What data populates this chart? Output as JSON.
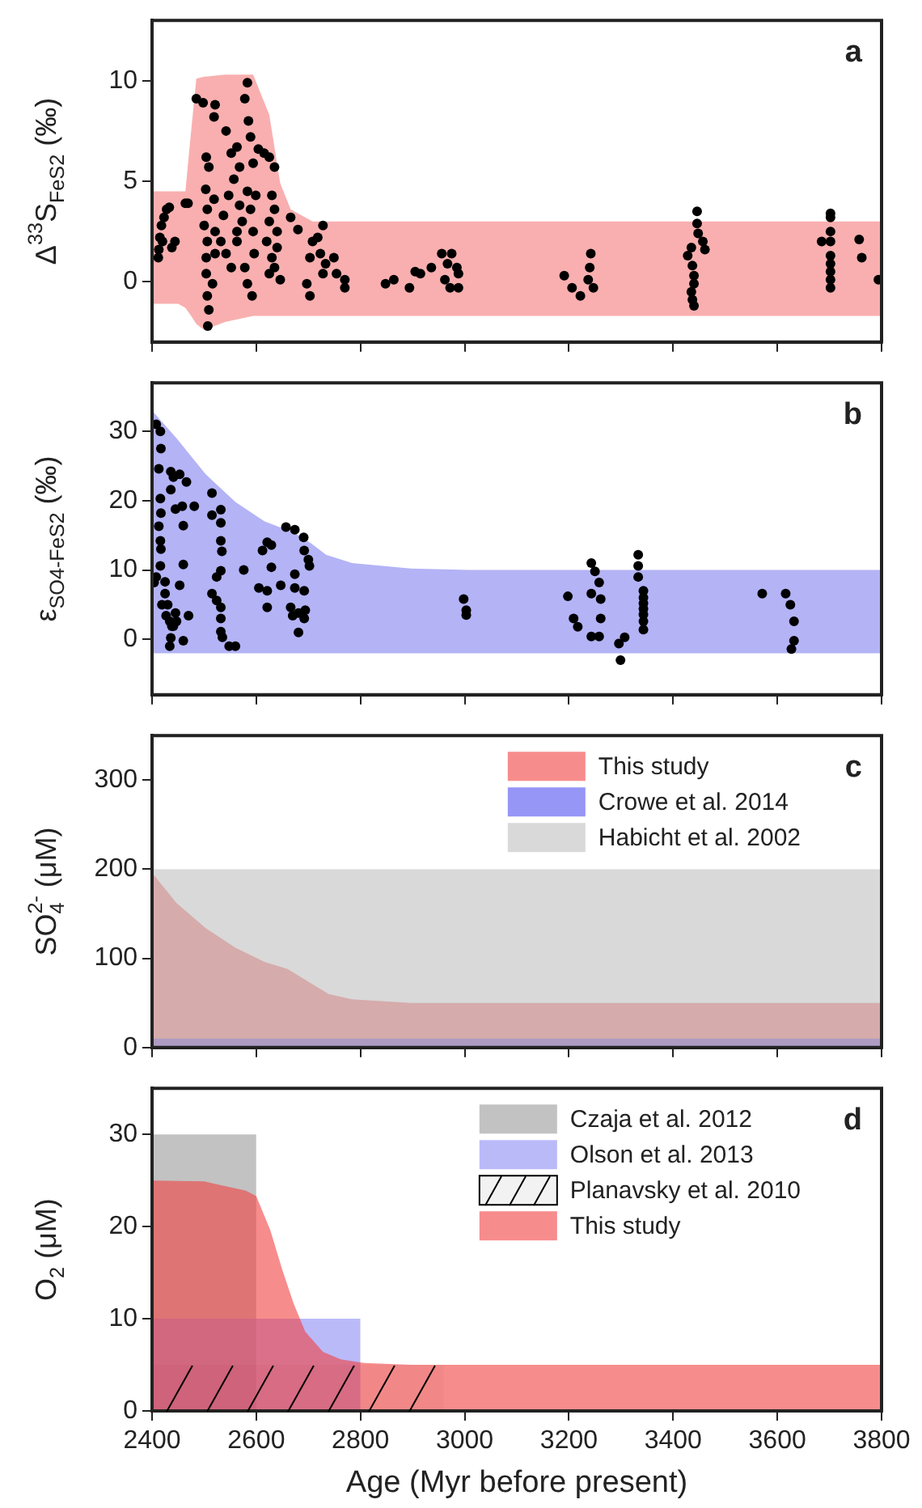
{
  "chart_data": [
    {
      "type": "scatter",
      "ylabel": "Δ$^{33}$S$_{FeS2}$ (‰)",
      "annotations": [
        "a"
      ],
      "xlim": [
        2400,
        3800
      ],
      "xticks": [
        2400,
        2600,
        2800,
        3000,
        3200,
        3400,
        3600,
        3800
      ],
      "ylim": [
        -3,
        13
      ],
      "yticks": [
        0,
        5,
        10
      ],
      "tick_labels": "y",
      "series": [
        {
          "type": "area",
          "color": "#f57a7a",
          "x": [
            2400,
            2450,
            2464,
            2475,
            2485,
            2500,
            2540,
            2594,
            2625,
            2646,
            2666,
            2708,
            3800
          ],
          "values": [
            null,
            null,
            null,
            null,
            null,
            null,
            null,
            null,
            null,
            null,
            null,
            null,
            null
          ],
          "upper": [
            4.5,
            4.5,
            4.5,
            7.5,
            10.1,
            10.2,
            10.3,
            10.3,
            8.3,
            4.9,
            3.6,
            3.0,
            3.0
          ],
          "lower": [
            -1.1,
            -1.1,
            -1.3,
            -1.7,
            -2.1,
            -2.4,
            -2.0,
            -1.7,
            -1.7,
            -1.7,
            -1.7,
            -1.7,
            -1.7
          ]
        },
        {
          "type": "scatter",
          "color": "#000000",
          "marker": "circle",
          "x": [
            2412,
            2415,
            2418,
            2423,
            2428,
            2433,
            2438,
            2444,
            2420,
            2413,
            2464,
            2469,
            2485,
            2498,
            2521,
            2519,
            2504,
            2509,
            2503,
            2506,
            2500,
            2506,
            2504,
            2504,
            2506,
            2509,
            2507,
            2516,
            2521,
            2521,
            2519,
            2542,
            2552,
            2563,
            2568,
            2557,
            2547,
            2537,
            2532,
            2542,
            2552,
            2563,
            2563,
            2573,
            2568,
            2583,
            2583,
            2578,
            2589,
            2585,
            2594,
            2599,
            2589,
            2594,
            2596,
            2592,
            2578,
            2583,
            2604,
            2615,
            2625,
            2635,
            2630,
            2635,
            2625,
            2620,
            2630,
            2625,
            2646,
            2640,
            2640,
            2635,
            2666,
            2680,
            2703,
            2697,
            2703,
            2708,
            2718,
            2728,
            2723,
            2733,
            2749,
            2754,
            2770,
            2770,
            2728,
            2848,
            2864,
            2894,
            2905,
            2915,
            2936,
            2956,
            2962,
            2967,
            2972,
            2988,
            2988,
            2975,
            2985,
            3191,
            3206,
            3222,
            3237,
            3240,
            3242,
            3247,
            3446,
            3446,
            3448,
            3457,
            3461,
            3428,
            3435,
            3437,
            3440,
            3440,
            3435,
            3437,
            3440,
            3702,
            3702,
            3702,
            3702,
            3702,
            3702,
            3702,
            3702,
            3702,
            3685,
            3757,
            3762,
            3794
          ],
          "values": [
            1.2,
            2.2,
            2.8,
            3.2,
            3.6,
            3.7,
            1.7,
            2.0,
            2.0,
            1.6,
            3.9,
            3.9,
            9.1,
            8.9,
            8.8,
            8.2,
            6.2,
            5.7,
            4.6,
            3.6,
            2.8,
            2.0,
            1.2,
            0.4,
            -0.7,
            -1.4,
            -2.2,
            -0.1,
            1.4,
            2.5,
            4.1,
            7.5,
            6.4,
            6.7,
            5.7,
            5.1,
            4.3,
            3.3,
            2.0,
            1.4,
            0.7,
            2.0,
            2.5,
            3.0,
            3.8,
            4.5,
            9.9,
            9.1,
            7.2,
            8.0,
            5.9,
            4.3,
            3.6,
            2.5,
            1.4,
            -0.7,
            0.7,
            -0.1,
            6.6,
            6.4,
            6.2,
            5.7,
            4.3,
            3.6,
            3.0,
            2.0,
            1.2,
            0.4,
            0.1,
            2.5,
            1.7,
            0.7,
            3.2,
            2.6,
            1.2,
            -0.1,
            -0.7,
            2.0,
            2.2,
            2.8,
            1.4,
            0.9,
            1.2,
            0.4,
            0.1,
            -0.3,
            0.4,
            -0.1,
            0.1,
            -0.3,
            0.5,
            0.4,
            0.7,
            1.4,
            0.1,
            0.9,
            -0.3,
            0.4,
            -0.3,
            1.4,
            0.7,
            0.3,
            -0.3,
            -0.7,
            0.1,
            0.7,
            1.4,
            -0.3,
            3.5,
            2.9,
            2.4,
            2.0,
            1.6,
            1.3,
            1.7,
            0.8,
            0.3,
            -0.1,
            -0.5,
            -0.9,
            -1.2,
            3.4,
            3.2,
            2.5,
            2.0,
            1.3,
            0.9,
            0.5,
            0.1,
            -0.3,
            2.0,
            2.1,
            1.2,
            0.1
          ]
        }
      ]
    },
    {
      "type": "scatter",
      "ylabel": "ε$_{SO4-FeS2}$ (‰)",
      "annotations": [
        "b"
      ],
      "xlim": [
        2400,
        3800
      ],
      "xticks": [
        2400,
        2600,
        2800,
        3000,
        3200,
        3400,
        3600,
        3800
      ],
      "ylim": [
        -8,
        37
      ],
      "yticks": [
        0,
        10,
        20,
        30
      ],
      "tick_labels": "y",
      "series": [
        {
          "type": "area",
          "color": "#8080f0",
          "x": [
            2400,
            2447,
            2503,
            2560,
            2616,
            2672,
            2706,
            2734,
            2784,
            2897,
            3009,
            3800
          ],
          "values": [
            null,
            null,
            null,
            null,
            null,
            null,
            null,
            null,
            null,
            null,
            null,
            null
          ],
          "upper": [
            33,
            29,
            23.8,
            19.8,
            17,
            15.4,
            13.8,
            12.2,
            11,
            10.2,
            10,
            10
          ],
          "lower": [
            -2,
            -2,
            -2,
            -2,
            -2,
            -2,
            -2,
            -2,
            -2,
            -2,
            -2,
            -2
          ]
        },
        {
          "type": "scatter",
          "color": "#000000",
          "marker": "circle",
          "x": [
            2408,
            2416,
            2417,
            2413,
            2416,
            2417,
            2413,
            2416,
            2417,
            2416,
            2408,
            2404,
            2425,
            2419,
            2425,
            2427,
            2430,
            2434,
            2436,
            2434,
            2438,
            2447,
            2445,
            2441,
            2436,
            2441,
            2453,
            2466,
            2436,
            2445,
            2458,
            2481,
            2460,
            2460,
            2453,
            2460,
            2470,
            2515,
            2515,
            2532,
            2532,
            2532,
            2534,
            2532,
            2524,
            2515,
            2524,
            2532,
            2532,
            2532,
            2535,
            2548,
            2560,
            2576,
            2605,
            2621,
            2621,
            2612,
            2621,
            2629,
            2629,
            2647,
            2657,
            2674,
            2691,
            2692,
            2700,
            2702,
            2674,
            2674,
            2692,
            2666,
            2681,
            2670,
            2694,
            2692,
            2681,
            2998,
            3003,
            3003,
            3198,
            3209,
            3217,
            3243,
            3250,
            3258,
            3243,
            3261,
            3261,
            3243,
            3258,
            3296,
            3307,
            3299,
            3333,
            3333,
            3333,
            3343,
            3343,
            3343,
            3343,
            3343,
            3343,
            3343,
            3571,
            3616,
            3625,
            3632,
            3632,
            3627
          ],
          "values": [
            31.0,
            30,
            27.5,
            24.6,
            20.3,
            18.2,
            16.3,
            14.2,
            13.0,
            10.6,
            9.0,
            8.2,
            8.3,
            5.0,
            6.6,
            3.4,
            5.0,
            2.6,
            0.2,
            -1.0,
            1.9,
            2.6,
            3.8,
            1.9,
            24.2,
            23.4,
            23.8,
            22.7,
            21.6,
            18.8,
            19.2,
            19.2,
            16.4,
            10.8,
            7.8,
            -0.2,
            3.4,
            21.1,
            17.9,
            18.7,
            16.8,
            14.2,
            12.7,
            9.9,
            9.0,
            6.6,
            5.6,
            4.6,
            3.0,
            1.1,
            0.3,
            -1.0,
            -1.0,
            10.0,
            7.4,
            7.0,
            4.6,
            12.8,
            14.0,
            13.6,
            10.4,
            7.8,
            16.2,
            15.8,
            14.7,
            12.8,
            11.5,
            10.6,
            9.4,
            7.4,
            7.0,
            4.6,
            3.8,
            3.4,
            4.2,
            3.0,
            1.0,
            5.8,
            4.2,
            3.5,
            6.2,
            3.0,
            1.8,
            11.0,
            9.8,
            8.2,
            6.6,
            5.8,
            3.0,
            0.4,
            0.4,
            -0.6,
            0.3,
            -3.0,
            12.2,
            10.6,
            9.0,
            7.0,
            6.0,
            5.2,
            4.4,
            3.6,
            2.6,
            1.4,
            6.6,
            6.6,
            5.0,
            2.6,
            -0.2,
            -1.4
          ]
        }
      ]
    },
    {
      "type": "area",
      "ylabel": "SO$_{4}$$^{2-}$ (μM)",
      "annotations": [
        "c"
      ],
      "xlim": [
        2400,
        3800
      ],
      "xticks": [
        2400,
        2600,
        2800,
        3000,
        3200,
        3400,
        3600,
        3800
      ],
      "ylim": [
        0,
        350
      ],
      "yticks": [
        0,
        100,
        200,
        300
      ],
      "tick_labels": "y",
      "legend": "top right",
      "series": [
        {
          "name": "This study",
          "color": "#f24040",
          "x": [
            2400,
            2447,
            2503,
            2560,
            2616,
            2660,
            2739,
            2784,
            2897,
            3800
          ],
          "values": [
            196,
            162,
            134,
            112,
            96,
            88,
            60,
            54,
            50,
            50
          ]
        },
        {
          "name": "Crowe et al. 2014",
          "color": "#5050f0",
          "x": [
            2400,
            3800
          ],
          "values": [
            10,
            10
          ]
        },
        {
          "name": "Habicht et al. 2002",
          "color": "#bfbfbf",
          "x": [
            2400,
            3800
          ],
          "values": [
            200,
            200
          ]
        }
      ]
    },
    {
      "type": "area",
      "ylabel": "O$_{2}$ (μM)",
      "xlabel": "Age (Myr before present)",
      "annotations": [
        "d"
      ],
      "xlim": [
        2400,
        3800
      ],
      "xticks": [
        2400,
        2600,
        2800,
        3000,
        3200,
        3400,
        3600,
        3800
      ],
      "ylim": [
        0,
        35
      ],
      "yticks": [
        0,
        10,
        20,
        30
      ],
      "legend": "top right",
      "series": [
        {
          "name": "Czaja et al. 2012",
          "color": "#9a9a9a",
          "x": [
            2400,
            2600
          ],
          "values": [
            30,
            30
          ]
        },
        {
          "name": "Olson et al. 2013",
          "color": "#8c8cf5",
          "x": [
            2400,
            2800
          ],
          "values": [
            10,
            10
          ]
        },
        {
          "name": "Planavsky et al. 2010",
          "color": "#000000",
          "line_style": "solid",
          "x": [
            2400,
            2960
          ],
          "values": [
            5,
            5
          ]
        },
        {
          "name": "This study",
          "color": "#f24040",
          "x": [
            2400,
            2500,
            2580,
            2600,
            2627,
            2650,
            2672,
            2694,
            2728,
            2762,
            2807,
            2897,
            3800
          ],
          "values": [
            25,
            24.9,
            23.9,
            23.3,
            19.6,
            15.3,
            11.6,
            8.6,
            6.4,
            5.6,
            5.2,
            5,
            5
          ]
        }
      ]
    }
  ]
}
